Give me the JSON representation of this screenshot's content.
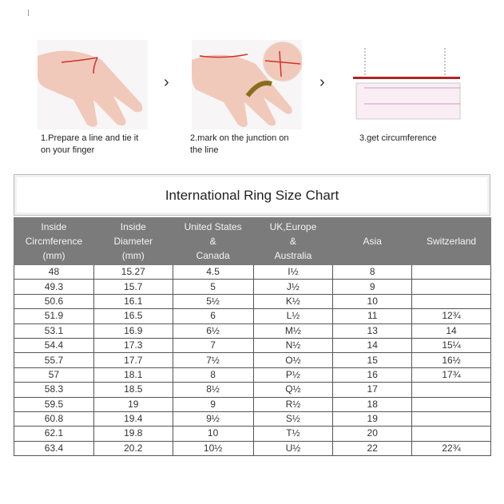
{
  "steps": [
    {
      "caption_line1": "1.Prepare a line and tie it",
      "caption_line2": "on your finger",
      "icon": "hand-with-string-image"
    },
    {
      "caption_line1": "2.mark on the junction on",
      "caption_line2": "the line",
      "icon": "hand-marking-string-image"
    },
    {
      "caption_line1": "3.get circumference",
      "caption_line2": "",
      "icon": "ruler-measurement-image"
    }
  ],
  "arrow_icon": "chevron-right-icon",
  "chart_title": "International Ring Size Chart",
  "colors": {
    "header_bg": "#7b7b7b",
    "string": "#d0312d",
    "skin": "#f1c9bb"
  },
  "chart_data": {
    "type": "table",
    "title": "International Ring Size Chart",
    "columns": [
      [
        "Inside",
        "Circmference",
        "(mm)"
      ],
      [
        "Inside",
        "Diameter",
        "(mm)"
      ],
      [
        "United States",
        "&",
        "Canada"
      ],
      [
        "UK,Europe",
        "&",
        "Australia"
      ],
      [
        "Asia"
      ],
      [
        "Switzerland"
      ]
    ],
    "rows": [
      [
        "48",
        "15.27",
        "4.5",
        "I½",
        "8",
        ""
      ],
      [
        "49.3",
        "15.7",
        "5",
        "J½",
        "9",
        ""
      ],
      [
        "50.6",
        "16.1",
        "5½",
        "K½",
        "10",
        ""
      ],
      [
        "51.9",
        "16.5",
        "6",
        "L½",
        "11",
        "12¾"
      ],
      [
        "53.1",
        "16.9",
        "6½",
        "M½",
        "13",
        "14"
      ],
      [
        "54.4",
        "17.3",
        "7",
        "N½",
        "14",
        "15¼"
      ],
      [
        "55.7",
        "17.7",
        "7½",
        "O½",
        "15",
        "16½"
      ],
      [
        "57",
        "18.1",
        "8",
        "P½",
        "16",
        "17¾"
      ],
      [
        "58.3",
        "18.5",
        "8½",
        "Q½",
        "17",
        ""
      ],
      [
        "59.5",
        "19",
        "9",
        "R½",
        "18",
        ""
      ],
      [
        "60.8",
        "19.4",
        "9½",
        "S½",
        "19",
        ""
      ],
      [
        "62.1",
        "19.8",
        "10",
        "T½",
        "20",
        ""
      ],
      [
        "63.4",
        "20.2",
        "10½",
        "U½",
        "22",
        "22¾"
      ]
    ]
  }
}
